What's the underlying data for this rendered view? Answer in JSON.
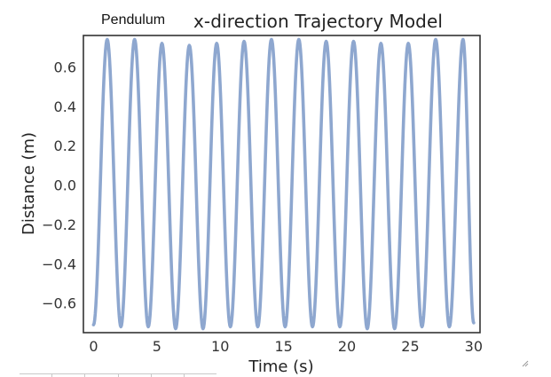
{
  "header": {
    "corner_label": "Pendulum"
  },
  "chart_data": {
    "type": "line",
    "title": "x-direction Trajectory Model",
    "xlabel": "Time (s)",
    "ylabel": "Distance (m)",
    "xlim": [
      -0.8,
      30.5
    ],
    "ylim": [
      -0.75,
      0.76
    ],
    "xticks": [
      0,
      5,
      10,
      15,
      20,
      25,
      30
    ],
    "xtick_labels": [
      "0",
      "5",
      "10",
      "15",
      "20",
      "25",
      "30"
    ],
    "yticks": [
      0.6,
      0.4,
      0.2,
      0.0,
      -0.2,
      -0.4,
      -0.6
    ],
    "ytick_labels": [
      "0.6",
      "0.4",
      "0.2",
      "0.0",
      "−0.2",
      "−0.4",
      "−0.6"
    ],
    "grid": false,
    "series": [
      {
        "color": "#8ea7cf",
        "x": [
          0,
          1.08,
          2.16,
          3.24,
          4.32,
          5.4,
          6.48,
          7.56,
          8.64,
          9.72,
          10.8,
          11.88,
          12.96,
          14.04,
          15.12,
          16.2,
          17.28,
          18.36,
          19.44,
          20.52,
          21.6,
          22.68,
          23.76,
          24.84,
          25.92,
          27.0,
          28.08,
          29.16,
          30.0
        ],
        "y": [
          -0.71,
          0.74,
          -0.72,
          0.74,
          -0.72,
          0.72,
          -0.73,
          0.71,
          -0.73,
          0.72,
          -0.72,
          0.73,
          -0.72,
          0.74,
          -0.72,
          0.74,
          -0.72,
          0.73,
          -0.72,
          0.73,
          -0.73,
          0.72,
          -0.73,
          0.72,
          -0.72,
          0.74,
          -0.72,
          0.74,
          -0.7
        ]
      }
    ]
  }
}
